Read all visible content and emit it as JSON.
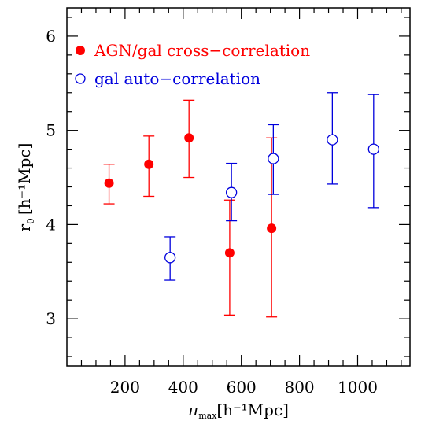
{
  "chart_data": {
    "type": "scatter",
    "xlabel": "π",
    "xlabel_sub": "max",
    "xlabel_unit": "[h⁻¹Mpc]",
    "ylabel": "r",
    "ylabel_sub": "0",
    "ylabel_unit": "[h⁻¹Mpc]",
    "xlim": [
      0,
      1180
    ],
    "ylim": [
      2.5,
      6.3
    ],
    "xticks": [
      200,
      400,
      600,
      800,
      1000
    ],
    "yticks": [
      3,
      4,
      5,
      6
    ],
    "x_minor_step": 50,
    "y_minor_step": 0.2,
    "legend_position": "top-left",
    "series": [
      {
        "name": "AGN/gal cross−correlation",
        "marker": "filled-circle",
        "color": "#ff0000",
        "points": [
          {
            "x": 145,
            "y": 4.44,
            "ylo": 4.22,
            "yhi": 4.64
          },
          {
            "x": 282,
            "y": 4.64,
            "ylo": 4.3,
            "yhi": 4.94
          },
          {
            "x": 420,
            "y": 4.92,
            "ylo": 4.5,
            "yhi": 5.32
          },
          {
            "x": 560,
            "y": 3.7,
            "ylo": 3.04,
            "yhi": 4.26
          },
          {
            "x": 704,
            "y": 3.96,
            "ylo": 3.02,
            "yhi": 4.92
          }
        ]
      },
      {
        "name": "gal auto−correlation",
        "marker": "open-circle",
        "color": "#0000dd",
        "points": [
          {
            "x": 355,
            "y": 3.65,
            "ylo": 3.41,
            "yhi": 3.87
          },
          {
            "x": 566,
            "y": 4.34,
            "ylo": 4.04,
            "yhi": 4.65
          },
          {
            "x": 710,
            "y": 4.7,
            "ylo": 4.32,
            "yhi": 5.06
          },
          {
            "x": 913,
            "y": 4.9,
            "ylo": 4.43,
            "yhi": 5.4
          },
          {
            "x": 1055,
            "y": 4.8,
            "ylo": 4.18,
            "yhi": 5.38
          }
        ]
      }
    ]
  }
}
